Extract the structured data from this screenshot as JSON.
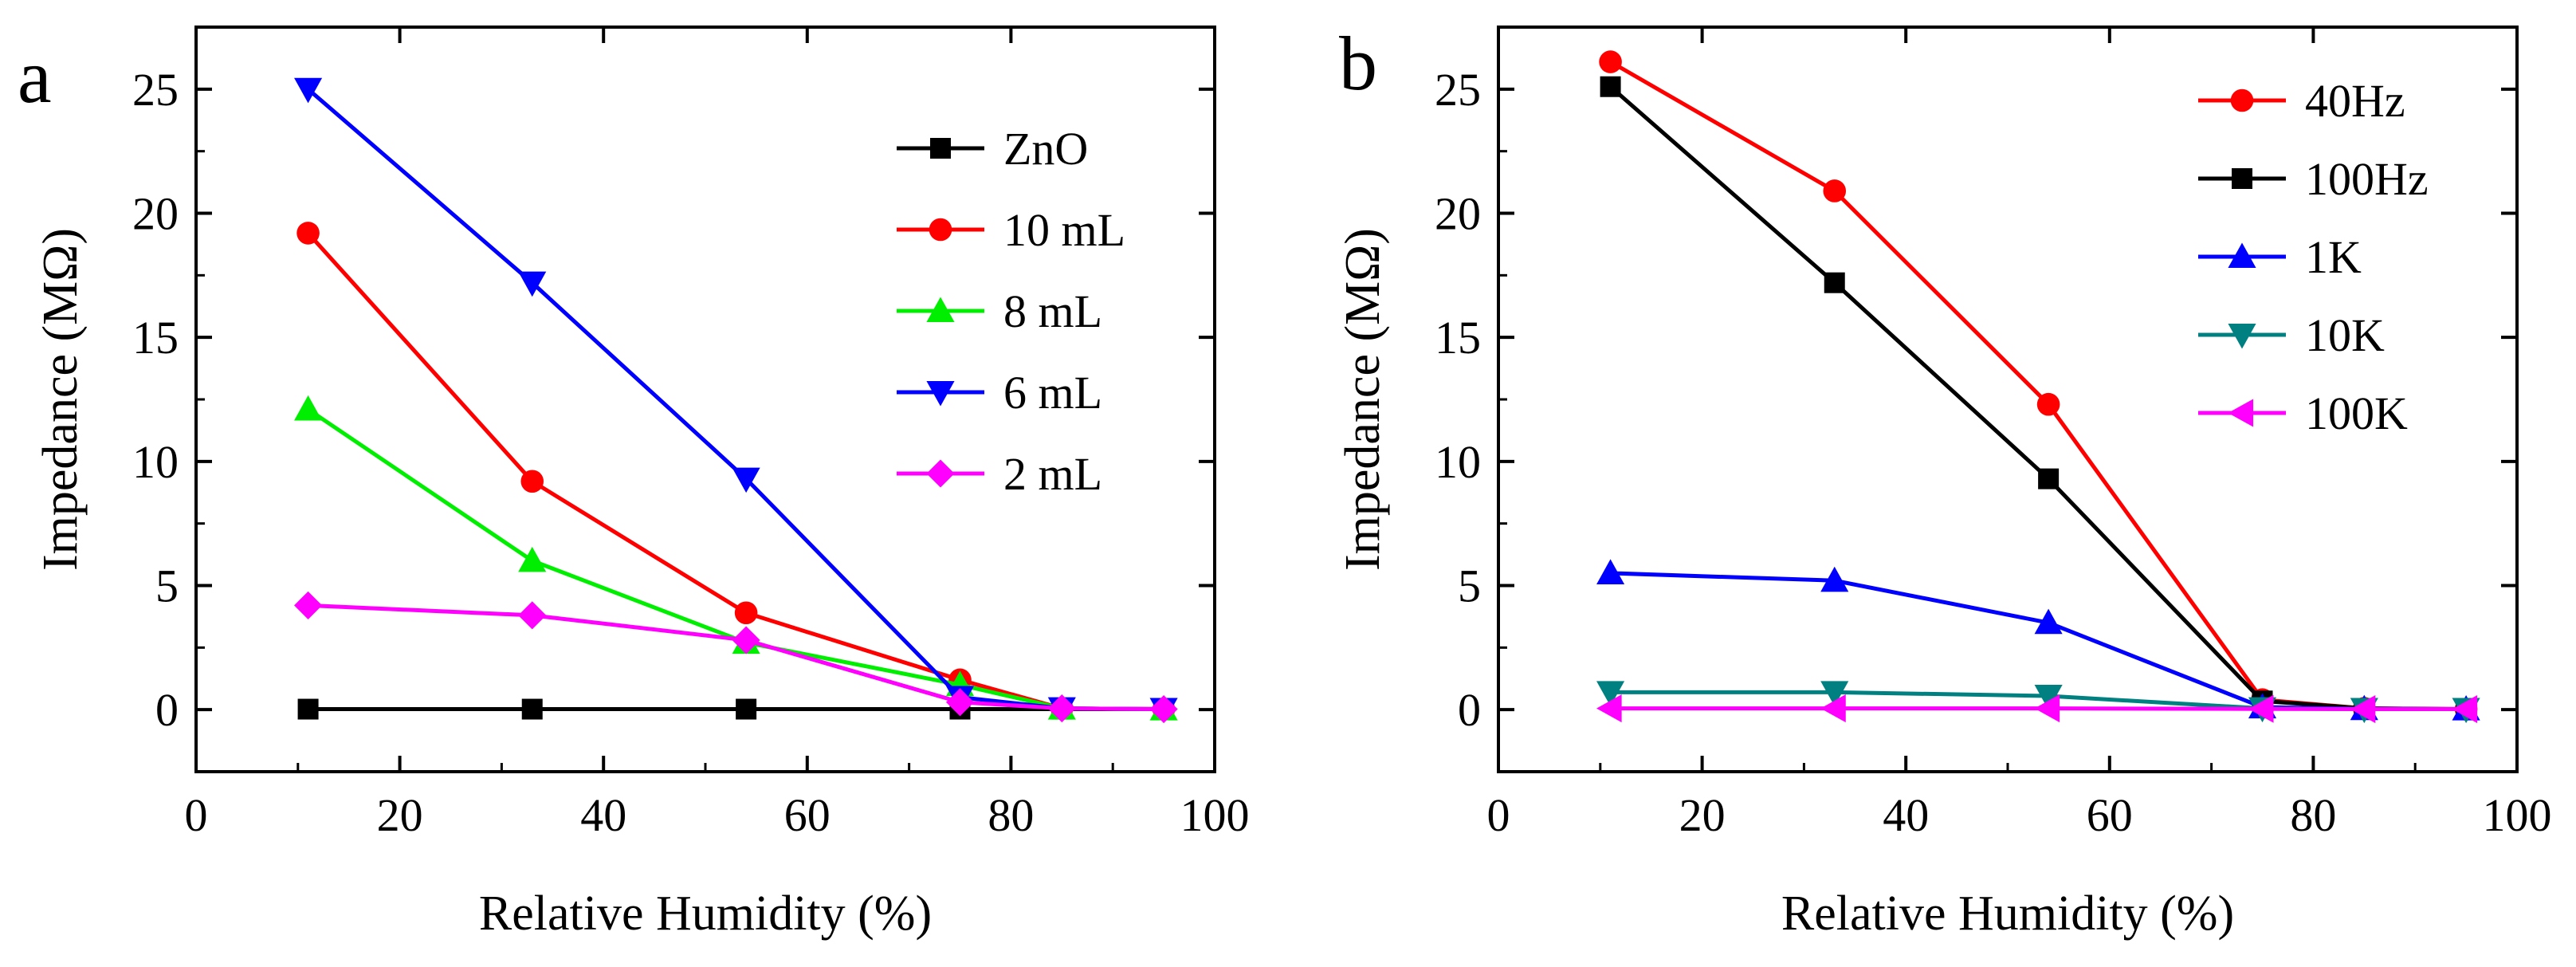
{
  "chart_data": [
    {
      "type": "line",
      "panel_label": "a",
      "xlabel": "Relative Humidity (%)",
      "ylabel": "Impedance (MΩ)",
      "xlim": [
        0,
        100
      ],
      "ylim": [
        -2.5,
        27.5
      ],
      "xticks": [
        0,
        20,
        40,
        60,
        80,
        100
      ],
      "yticks": [
        0,
        5,
        10,
        15,
        20,
        25
      ],
      "legend_position": "top-right",
      "series": [
        {
          "name": "ZnO",
          "color": "#000000",
          "marker": "square",
          "x": [
            11,
            33,
            54,
            75,
            85,
            95
          ],
          "y": [
            0.02,
            0.02,
            0.02,
            0.02,
            0.02,
            0.02
          ]
        },
        {
          "name": "10 mL",
          "color": "#ff0000",
          "marker": "circle",
          "x": [
            11,
            33,
            54,
            75,
            85,
            95
          ],
          "y": [
            19.2,
            9.2,
            3.9,
            1.2,
            0.05,
            0.02
          ]
        },
        {
          "name": "8 mL",
          "color": "#00ee00",
          "marker": "triangle-up",
          "x": [
            11,
            33,
            54,
            75,
            85,
            95
          ],
          "y": [
            12.1,
            6.0,
            2.7,
            1.0,
            0.05,
            0.02
          ]
        },
        {
          "name": "6 mL",
          "color": "#0000ff",
          "marker": "triangle-down",
          "x": [
            11,
            33,
            54,
            75,
            85,
            95
          ],
          "y": [
            25.0,
            17.2,
            9.3,
            0.5,
            0.05,
            0.02
          ]
        },
        {
          "name": "2 mL",
          "color": "#ff00ff",
          "marker": "diamond",
          "x": [
            11,
            33,
            54,
            75,
            85,
            95
          ],
          "y": [
            4.2,
            3.8,
            2.8,
            0.3,
            0.05,
            0.02
          ]
        }
      ]
    },
    {
      "type": "line",
      "panel_label": "b",
      "xlabel": "Relative Humidity (%)",
      "ylabel": "Impedance (MΩ)",
      "xlim": [
        0,
        100
      ],
      "ylim": [
        -2.5,
        27.5
      ],
      "xticks": [
        0,
        20,
        40,
        60,
        80,
        100
      ],
      "yticks": [
        0,
        5,
        10,
        15,
        20,
        25
      ],
      "legend_position": "top-right",
      "series": [
        {
          "name": "40Hz",
          "color": "#ff0000",
          "marker": "circle",
          "x": [
            11,
            33,
            54,
            75,
            85,
            95
          ],
          "y": [
            26.1,
            20.9,
            12.3,
            0.4,
            0.05,
            0.02
          ]
        },
        {
          "name": "100Hz",
          "color": "#000000",
          "marker": "square",
          "x": [
            11,
            33,
            54,
            75,
            85,
            95
          ],
          "y": [
            25.1,
            17.2,
            9.3,
            0.35,
            0.05,
            0.02
          ]
        },
        {
          "name": "1K",
          "color": "#0000ff",
          "marker": "triangle-up",
          "x": [
            11,
            33,
            54,
            75,
            85,
            95
          ],
          "y": [
            5.5,
            5.2,
            3.5,
            0.1,
            0.03,
            0.02
          ]
        },
        {
          "name": "10K",
          "color": "#008080",
          "marker": "triangle-down",
          "x": [
            11,
            33,
            54,
            75,
            85,
            95
          ],
          "y": [
            0.7,
            0.7,
            0.55,
            0.05,
            0.02,
            0.02
          ]
        },
        {
          "name": "100K",
          "color": "#ff00ff",
          "marker": "triangle-left",
          "x": [
            11,
            33,
            54,
            75,
            85,
            95
          ],
          "y": [
            0.05,
            0.05,
            0.05,
            0.03,
            0.02,
            0.02
          ]
        }
      ]
    }
  ]
}
